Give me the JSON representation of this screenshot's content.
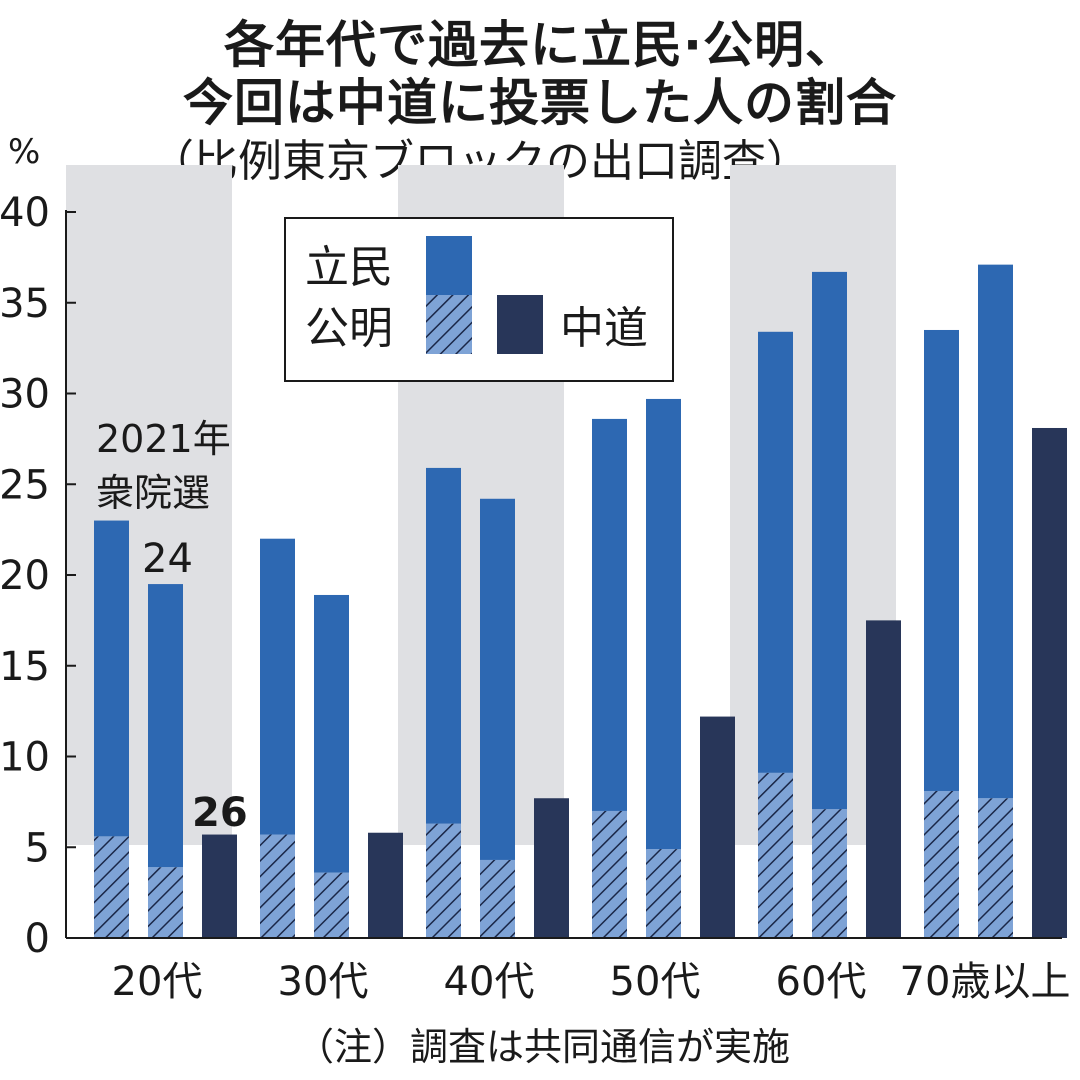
{
  "chart_data": {
    "type": "bar",
    "title": "各年代で過去に立民·公明、",
    "title_line2": "今回は中道に投票した人の割合",
    "subtitle": "（比例東京ブロックの出口調査）",
    "ylabel": "%",
    "ylim": [
      0,
      40
    ],
    "yticks": [
      "0",
      "5",
      "10",
      "15",
      "20",
      "25",
      "30",
      "35",
      "40"
    ],
    "ytick_values": [
      0,
      5,
      10,
      15,
      20,
      25,
      30,
      35,
      40
    ],
    "categories": [
      "20代",
      "30代",
      "40代",
      "50代",
      "60代",
      "70歳以上"
    ],
    "bar_groups": [
      "2021年衆院選",
      "24",
      "26"
    ],
    "annotations": {
      "year2021_line1": "2021年",
      "year2021_line2": "衆院選",
      "year24": "24",
      "year26": "26"
    },
    "series": [
      {
        "name": "立民",
        "election": "2021",
        "values": [
          17.4,
          16.3,
          19.6,
          21.6,
          24.3,
          25.4
        ]
      },
      {
        "name": "公明",
        "election": "2021",
        "values": [
          5.6,
          5.7,
          6.3,
          7.0,
          9.1,
          8.1
        ]
      },
      {
        "name": "立民",
        "election": "24",
        "values": [
          15.6,
          15.3,
          19.9,
          24.8,
          29.6,
          29.4
        ]
      },
      {
        "name": "公明",
        "election": "24",
        "values": [
          3.9,
          3.6,
          4.3,
          4.9,
          7.1,
          7.7
        ]
      },
      {
        "name": "中道",
        "election": "26",
        "values": [
          5.7,
          5.8,
          7.7,
          12.2,
          17.5,
          28.1
        ]
      }
    ],
    "legend": {
      "items": [
        {
          "label": "立民",
          "pattern": "solid-blue"
        },
        {
          "label": "公明",
          "pattern": "hatched-lightblue"
        },
        {
          "label": "中道",
          "pattern": "solid-navy"
        }
      ],
      "placement": "top-center"
    },
    "note": "（注）調査は共同通信が実施",
    "colors": {
      "rikken": "#2d68b2",
      "komei": "#7ea3d6",
      "chudo": "#283659",
      "band": "#dfe0e3"
    },
    "grid": false
  }
}
